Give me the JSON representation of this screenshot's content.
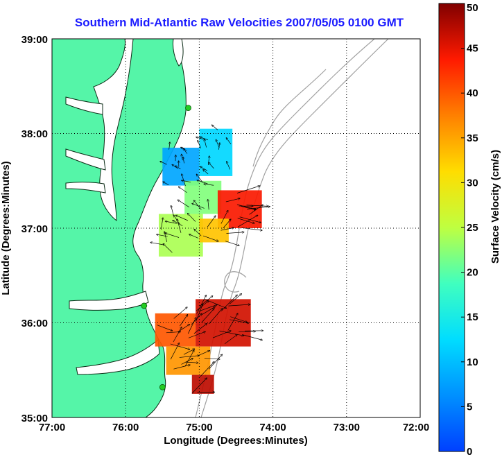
{
  "title": "Southern Mid-Atlantic Raw Velocities 2007/05/05 0100 GMT",
  "x_axis": {
    "label": "Longitude (Degrees:Minutes)",
    "ticks": [
      "77:00",
      "76:00",
      "75:00",
      "74:00",
      "73:00",
      "72:00"
    ]
  },
  "y_axis": {
    "label": "Latitude (Degrees:Minutes)",
    "ticks": [
      "39:00",
      "38:00",
      "37:00",
      "36:00",
      "35:00"
    ]
  },
  "colorbar": {
    "label": "Surface Velocity (cm/s)",
    "ticks": [
      "50",
      "45",
      "40",
      "35",
      "30",
      "25",
      "20",
      "15",
      "10",
      "5",
      "0"
    ],
    "min": 0,
    "max": 50
  },
  "colors": {
    "land": "#55f5a8",
    "coast_line": "#0a2a14",
    "bathymetry": "#a0a0a0",
    "radar_site": "#22cc22",
    "title": "#1a1aff"
  },
  "map": {
    "lon_range": [
      -77,
      -72
    ],
    "lat_range": [
      35,
      39
    ],
    "radar_sites": [
      {
        "lon": -75.15,
        "lat": 38.27
      },
      {
        "lon": -75.75,
        "lat": 36.18
      },
      {
        "lon": -75.5,
        "lat": 35.32
      }
    ],
    "velocity_regions": [
      {
        "lon0": -75.5,
        "lat0": 37.45,
        "lon1": -75.0,
        "lat1": 37.85,
        "speed": 8
      },
      {
        "lon0": -75.0,
        "lat0": 37.55,
        "lon1": -74.55,
        "lat1": 38.05,
        "speed": 12
      },
      {
        "lon0": -75.2,
        "lat0": 37.15,
        "lon1": -74.7,
        "lat1": 37.5,
        "speed": 22
      },
      {
        "lon0": -74.75,
        "lat0": 37.0,
        "lon1": -74.15,
        "lat1": 37.4,
        "speed": 44
      },
      {
        "lon0": -75.55,
        "lat0": 36.7,
        "lon1": -74.95,
        "lat1": 37.15,
        "speed": 24
      },
      {
        "lon0": -75.0,
        "lat0": 36.85,
        "lon1": -74.6,
        "lat1": 37.1,
        "speed": 33
      },
      {
        "lon0": -75.6,
        "lat0": 35.75,
        "lon1": -75.05,
        "lat1": 36.1,
        "speed": 40
      },
      {
        "lon0": -75.05,
        "lat0": 35.75,
        "lon1": -74.3,
        "lat1": 36.25,
        "speed": 46
      },
      {
        "lon0": -75.45,
        "lat0": 35.45,
        "lon1": -74.85,
        "lat1": 35.75,
        "speed": 36
      },
      {
        "lon0": -75.1,
        "lat0": 35.25,
        "lon1": -74.8,
        "lat1": 35.45,
        "speed": 47
      }
    ]
  }
}
